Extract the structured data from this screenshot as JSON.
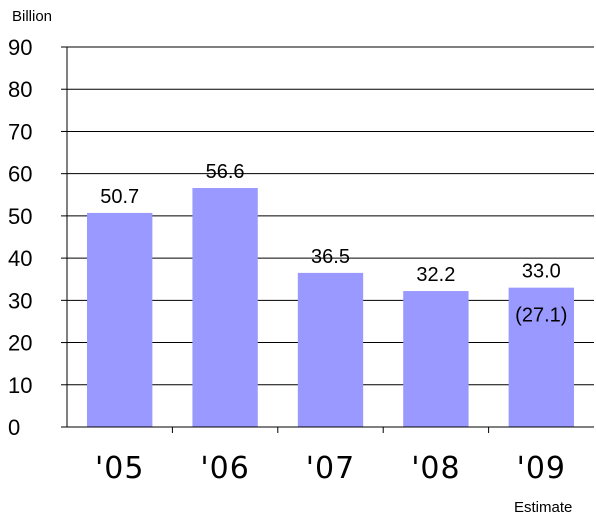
{
  "chart_data": {
    "type": "bar",
    "unit_label": "Billion",
    "categories": [
      "'05",
      "'06",
      "'07",
      "'08",
      "'09"
    ],
    "values": [
      50.7,
      56.6,
      36.5,
      32.2,
      33.0
    ],
    "value_labels": [
      "50.7",
      "56.6",
      "36.5",
      "32.2",
      "33.0"
    ],
    "annotation": {
      "category": "'09",
      "text": "(27.1)"
    },
    "note": "Estimate",
    "ylim": [
      0,
      90
    ],
    "yticks": [
      "0",
      "10",
      "20",
      "30",
      "40",
      "50",
      "60",
      "70",
      "80",
      "90"
    ],
    "bar_color": "#9999ff",
    "grid": true
  }
}
